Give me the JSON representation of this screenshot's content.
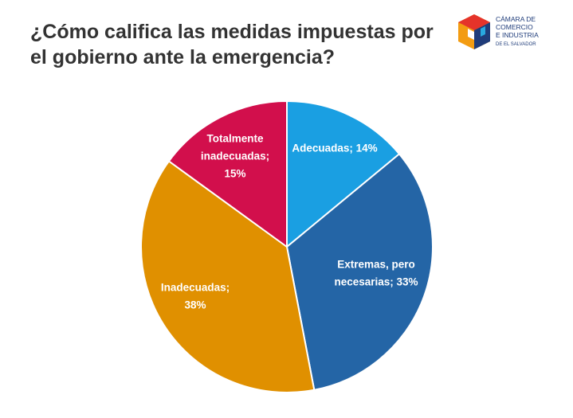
{
  "chart_data": {
    "type": "pie",
    "title": [
      "¿Cómo califica las medidas impuestas por",
      "el gobierno ante la emergencia?"
    ],
    "logo": [
      "CÁMARA DE",
      "COMERCIO",
      "E INDUSTRIA",
      "DE EL SALVADOR"
    ],
    "values": [
      14,
      33,
      38,
      15
    ],
    "value_labels": [
      [
        "Adecuadas; 14%"
      ],
      [
        "Extremas, pero",
        "necesarias; 33%"
      ],
      [
        "Inadecuadas;",
        "38%"
      ],
      [
        "Totalmente",
        "inadecuadas;",
        "15%"
      ]
    ],
    "colors": [
      "#1a9fe2",
      "#2465a6",
      "#e09000",
      "#d20f4c"
    ]
  }
}
